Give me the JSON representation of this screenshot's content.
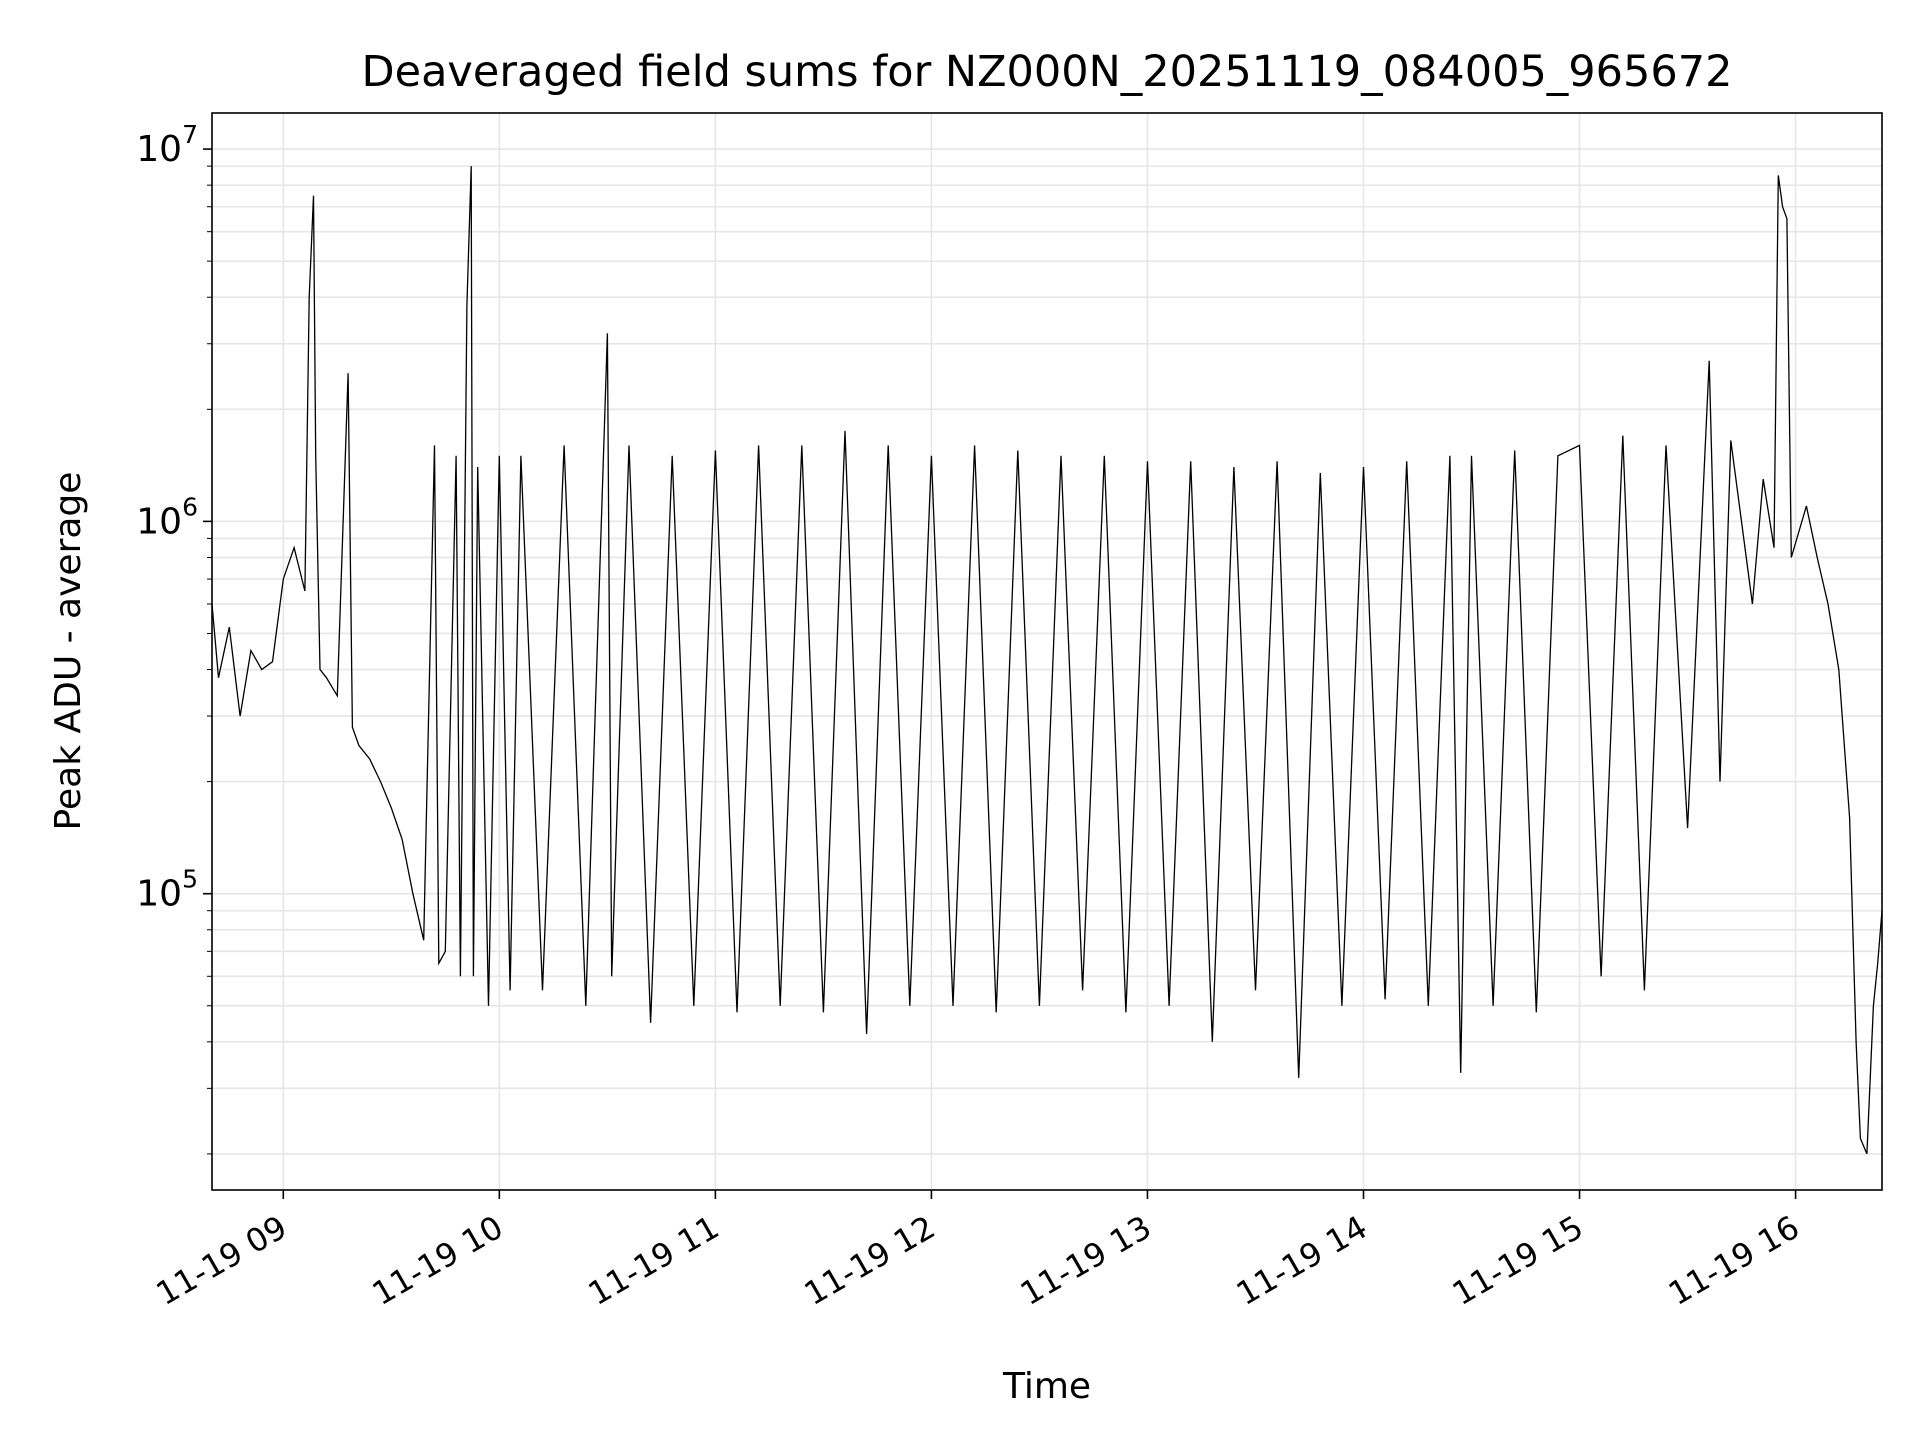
{
  "chart_data": {
    "type": "line",
    "title": "Deaveraged field sums for NZ000N_20251119_084005_965672",
    "xlabel": "Time",
    "ylabel": "Peak ADU - average",
    "yscale": "log",
    "ylim": [
      16000,
      12500000
    ],
    "xlim": [
      8.67,
      16.4
    ],
    "grid": true,
    "line_color": "#000000",
    "grid_color": "#e6e6e6",
    "x_ticks": [
      {
        "value": 9,
        "label": "11-19 09"
      },
      {
        "value": 10,
        "label": "11-19 10"
      },
      {
        "value": 11,
        "label": "11-19 11"
      },
      {
        "value": 12,
        "label": "11-19 12"
      },
      {
        "value": 13,
        "label": "11-19 13"
      },
      {
        "value": 14,
        "label": "11-19 14"
      },
      {
        "value": 15,
        "label": "11-19 15"
      },
      {
        "value": 16,
        "label": "11-19 16"
      }
    ],
    "y_ticks": [
      {
        "value": 100000,
        "base": "10",
        "exp": "5"
      },
      {
        "value": 1000000,
        "base": "10",
        "exp": "6"
      },
      {
        "value": 10000000,
        "base": "10",
        "exp": "7"
      }
    ],
    "series": [
      {
        "name": "Peak ADU - average",
        "x_unit": "hour of 2025-11-19",
        "points": [
          [
            8.67,
            600000
          ],
          [
            8.7,
            380000
          ],
          [
            8.75,
            520000
          ],
          [
            8.8,
            300000
          ],
          [
            8.85,
            450000
          ],
          [
            8.9,
            400000
          ],
          [
            8.95,
            420000
          ],
          [
            9.0,
            700000
          ],
          [
            9.05,
            850000
          ],
          [
            9.1,
            650000
          ],
          [
            9.12,
            4000000
          ],
          [
            9.14,
            7500000
          ],
          [
            9.15,
            1500000
          ],
          [
            9.17,
            400000
          ],
          [
            9.2,
            380000
          ],
          [
            9.25,
            340000
          ],
          [
            9.3,
            2500000
          ],
          [
            9.32,
            280000
          ],
          [
            9.35,
            250000
          ],
          [
            9.4,
            230000
          ],
          [
            9.45,
            200000
          ],
          [
            9.5,
            170000
          ],
          [
            9.55,
            140000
          ],
          [
            9.6,
            100000
          ],
          [
            9.65,
            75000
          ],
          [
            9.7,
            1600000
          ],
          [
            9.72,
            65000
          ],
          [
            9.75,
            70000
          ],
          [
            9.8,
            1500000
          ],
          [
            9.82,
            60000
          ],
          [
            9.85,
            3800000
          ],
          [
            9.87,
            9000000
          ],
          [
            9.88,
            60000
          ],
          [
            9.9,
            1400000
          ],
          [
            9.95,
            50000
          ],
          [
            10.0,
            1500000
          ],
          [
            10.05,
            55000
          ],
          [
            10.1,
            1500000
          ],
          [
            10.2,
            55000
          ],
          [
            10.3,
            1600000
          ],
          [
            10.4,
            50000
          ],
          [
            10.5,
            3200000
          ],
          [
            10.52,
            60000
          ],
          [
            10.6,
            1600000
          ],
          [
            10.7,
            45000
          ],
          [
            10.8,
            1500000
          ],
          [
            10.9,
            50000
          ],
          [
            11.0,
            1550000
          ],
          [
            11.1,
            48000
          ],
          [
            11.2,
            1600000
          ],
          [
            11.3,
            50000
          ],
          [
            11.4,
            1600000
          ],
          [
            11.5,
            48000
          ],
          [
            11.6,
            1750000
          ],
          [
            11.7,
            42000
          ],
          [
            11.8,
            1600000
          ],
          [
            11.9,
            50000
          ],
          [
            12.0,
            1500000
          ],
          [
            12.1,
            50000
          ],
          [
            12.2,
            1600000
          ],
          [
            12.3,
            48000
          ],
          [
            12.4,
            1550000
          ],
          [
            12.5,
            50000
          ],
          [
            12.6,
            1500000
          ],
          [
            12.7,
            55000
          ],
          [
            12.8,
            1500000
          ],
          [
            12.9,
            48000
          ],
          [
            13.0,
            1450000
          ],
          [
            13.1,
            50000
          ],
          [
            13.2,
            1450000
          ],
          [
            13.3,
            40000
          ],
          [
            13.4,
            1400000
          ],
          [
            13.5,
            55000
          ],
          [
            13.6,
            1450000
          ],
          [
            13.7,
            32000
          ],
          [
            13.8,
            1350000
          ],
          [
            13.9,
            50000
          ],
          [
            14.0,
            1400000
          ],
          [
            14.1,
            52000
          ],
          [
            14.2,
            1450000
          ],
          [
            14.3,
            50000
          ],
          [
            14.4,
            1500000
          ],
          [
            14.45,
            33000
          ],
          [
            14.5,
            1500000
          ],
          [
            14.6,
            50000
          ],
          [
            14.7,
            1550000
          ],
          [
            14.8,
            48000
          ],
          [
            14.9,
            1500000
          ],
          [
            15.0,
            1600000
          ],
          [
            15.1,
            60000
          ],
          [
            15.2,
            1700000
          ],
          [
            15.3,
            55000
          ],
          [
            15.4,
            1600000
          ],
          [
            15.5,
            150000
          ],
          [
            15.6,
            2700000
          ],
          [
            15.65,
            200000
          ],
          [
            15.7,
            1650000
          ],
          [
            15.8,
            600000
          ],
          [
            15.85,
            1300000
          ],
          [
            15.9,
            850000
          ],
          [
            15.92,
            8500000
          ],
          [
            15.94,
            7000000
          ],
          [
            15.96,
            6500000
          ],
          [
            15.98,
            800000
          ],
          [
            16.05,
            1100000
          ],
          [
            16.1,
            800000
          ],
          [
            16.15,
            600000
          ],
          [
            16.2,
            400000
          ],
          [
            16.25,
            160000
          ],
          [
            16.28,
            40000
          ],
          [
            16.3,
            22000
          ],
          [
            16.33,
            20000
          ],
          [
            16.36,
            50000
          ],
          [
            16.38,
            65000
          ],
          [
            16.4,
            90000
          ]
        ]
      }
    ]
  }
}
